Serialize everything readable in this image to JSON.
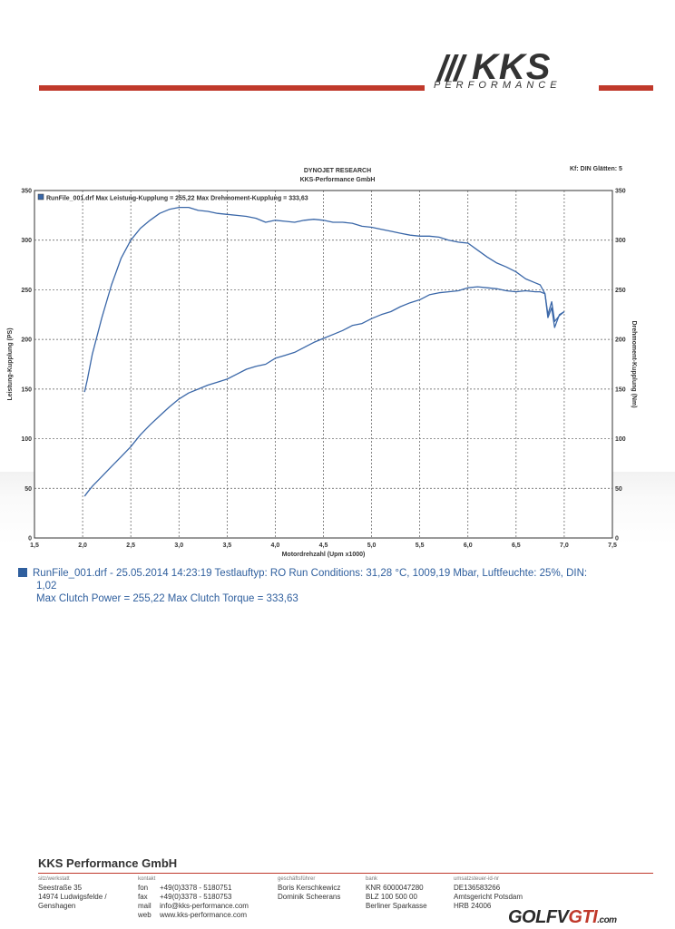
{
  "logo": {
    "slashes": "///",
    "word": "KKS",
    "sub": "PERFORMANCE"
  },
  "header": {
    "line1": "DYNOJET RESEARCH",
    "line2": "KKS-Performance GmbH",
    "kf": "Kf: DIN  Glätten: 5"
  },
  "chart_data": {
    "type": "line",
    "title": "DYNOJET RESEARCH",
    "subtitle": "KKS-Performance GmbH",
    "xlabel": "Motordrehzahl (Upm x1000)",
    "ylabel": "Leistung-Kupplung (PS)",
    "y2label": "Drehmoment-Kupplung (Nm)",
    "xlim": [
      1.5,
      7.5
    ],
    "ylim": [
      0,
      350
    ],
    "y2lim": [
      0,
      350
    ],
    "x_ticks": [
      "1,5",
      "2,0",
      "2,5",
      "3,0",
      "3,5",
      "4,0",
      "4,5",
      "5,0",
      "5,5",
      "6,0",
      "6,5",
      "7,0",
      "7,5"
    ],
    "y_ticks": [
      "0",
      "50",
      "100",
      "150",
      "200",
      "250",
      "300",
      "350"
    ],
    "grid": true,
    "legend_text": "RunFile_001.drf Max Leistung-Kupplung = 255,22     Max Drehmoment-Kupplung = 333,63",
    "series": [
      {
        "name": "Leistung-Kupplung",
        "color": "#3a67a8",
        "x": [
          2.02,
          2.05,
          2.1,
          2.2,
          2.3,
          2.4,
          2.5,
          2.6,
          2.7,
          2.8,
          2.9,
          3.0,
          3.1,
          3.2,
          3.3,
          3.4,
          3.5,
          3.6,
          3.7,
          3.8,
          3.9,
          4.0,
          4.1,
          4.2,
          4.3,
          4.4,
          4.5,
          4.6,
          4.7,
          4.8,
          4.9,
          5.0,
          5.1,
          5.2,
          5.3,
          5.4,
          5.5,
          5.6,
          5.7,
          5.8,
          5.9,
          6.0,
          6.1,
          6.2,
          6.3,
          6.4,
          6.5,
          6.6,
          6.7,
          6.75,
          6.8,
          6.83,
          6.87,
          6.9,
          6.95,
          7.0
        ],
        "y": [
          42,
          46,
          52,
          62,
          72,
          82,
          92,
          104,
          114,
          123,
          132,
          140,
          146,
          150,
          154,
          157,
          160,
          165,
          170,
          173,
          175,
          181,
          184,
          187,
          192,
          197,
          201,
          205,
          209,
          214,
          216,
          221,
          225,
          228,
          233,
          237,
          240,
          245,
          247,
          248,
          249,
          252,
          253,
          252,
          251,
          249,
          248,
          249,
          248,
          248,
          246,
          225,
          238,
          218,
          224,
          228
        ]
      },
      {
        "name": "Drehmoment-Kupplung",
        "color": "#3a67a8",
        "x": [
          2.02,
          2.05,
          2.1,
          2.2,
          2.3,
          2.4,
          2.5,
          2.6,
          2.7,
          2.8,
          2.9,
          3.0,
          3.1,
          3.2,
          3.3,
          3.4,
          3.5,
          3.6,
          3.7,
          3.8,
          3.9,
          4.0,
          4.1,
          4.2,
          4.3,
          4.4,
          4.5,
          4.6,
          4.7,
          4.8,
          4.9,
          5.0,
          5.1,
          5.2,
          5.3,
          5.4,
          5.5,
          5.6,
          5.7,
          5.8,
          5.9,
          6.0,
          6.1,
          6.2,
          6.3,
          6.4,
          6.5,
          6.6,
          6.7,
          6.75,
          6.8,
          6.83,
          6.87,
          6.9,
          6.95,
          7.0
        ],
        "y": [
          147,
          160,
          185,
          222,
          255,
          282,
          300,
          312,
          320,
          327,
          331,
          333,
          333,
          330,
          329,
          327,
          326,
          325,
          324,
          322,
          318,
          320,
          319,
          318,
          320,
          321,
          320,
          318,
          318,
          317,
          314,
          313,
          311,
          309,
          307,
          305,
          304,
          304,
          303,
          300,
          298,
          297,
          290,
          283,
          277,
          273,
          268,
          261,
          257,
          255,
          246,
          222,
          232,
          212,
          225,
          228
        ]
      }
    ]
  },
  "run_info": {
    "line1": "RunFile_001.drf - 25.05.2014 14:23:19  Testlauftyp: RO  Run Conditions: 31,28 °C, 1009,19 Mbar,  Luftfeuchte: 25%, DIN:",
    "line2": "1,02",
    "line3": "Max Clutch Power = 255,22  Max Clutch Torque = 333,63"
  },
  "footer": {
    "company": "KKS Performance GmbH",
    "col1_cap": "sitz/werkstatt",
    "col1": [
      "Seestraße 35",
      "14974 Ludwigsfelde /",
      "Genshagen"
    ],
    "col2_cap": "kontakt",
    "col2_labels": [
      "fon",
      "fax",
      "mail",
      "web"
    ],
    "col2_values": [
      "+49(0)3378 - 5180751",
      "+49(0)3378 - 5180753",
      "info@kks-performance.com",
      "www.kks-performance.com"
    ],
    "col3_cap": "geschäftsführer",
    "col3": [
      "Boris Kerschkewicz",
      "Dominik Scheerans"
    ],
    "col4_cap": "bank",
    "col4": [
      "KNR  6000047280",
      "BLZ  100 500 00",
      "Berliner Sparkasse"
    ],
    "col5_cap": "umsatzsteuer-id-nr",
    "col5": [
      "DE136583266",
      "Amtsgericht Potsdam",
      "HRB 24006"
    ]
  },
  "watermark": {
    "a": "GOLF",
    "b": "V",
    "c": "GTI",
    "d": ".com"
  }
}
